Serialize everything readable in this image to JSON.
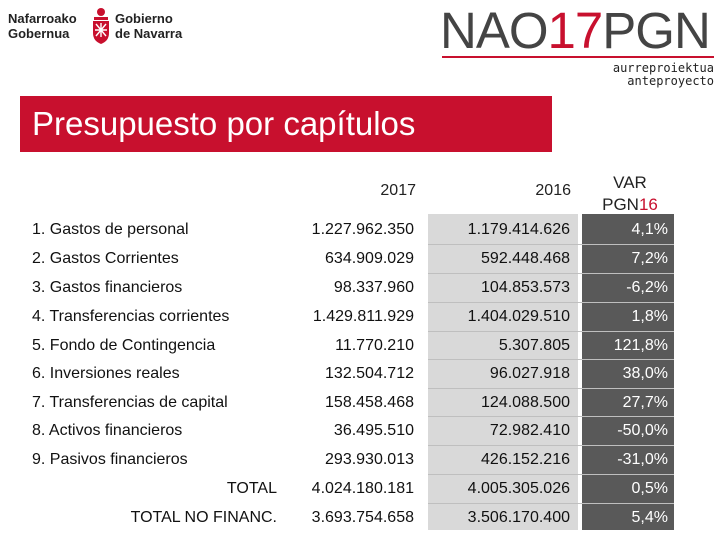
{
  "header": {
    "logo_left_line1": "Nafarroako",
    "logo_left_line2": "Gobernua",
    "logo_right_line1": "Gobierno",
    "logo_right_line2": "de Navarra",
    "brand_prefix": "NAO",
    "brand_number": "17",
    "brand_suffix": "PGN",
    "sub_line1": "aurreproiektua",
    "sub_line2": "anteproyecto",
    "accent_color": "#c8102e"
  },
  "title": "Presupuesto por capítulos",
  "table": {
    "col_2017": "2017",
    "col_2016": "2016",
    "col_var_line1": "VAR",
    "col_var_line2_prefix": "PGN",
    "col_var_line2_suffix": "16",
    "rows": [
      {
        "label": "1. Gastos de personal",
        "v2017": "1.227.962.350",
        "v2016": "1.179.414.626",
        "var": "4,1%"
      },
      {
        "label": "2. Gastos Corrientes",
        "v2017": "634.909.029",
        "v2016": "592.448.468",
        "var": "7,2%"
      },
      {
        "label": "3. Gastos financieros",
        "v2017": "98.337.960",
        "v2016": "104.853.573",
        "var": "-6,2%"
      },
      {
        "label": "4. Transferencias corrientes",
        "v2017": "1.429.811.929",
        "v2016": "1.404.029.510",
        "var": "1,8%"
      },
      {
        "label": "5. Fondo de Contingencia",
        "v2017": "11.770.210",
        "v2016": "5.307.805",
        "var": "121,8%"
      },
      {
        "label": "6. Inversiones reales",
        "v2017": "132.504.712",
        "v2016": "96.027.918",
        "var": "38,0%"
      },
      {
        "label": "7. Transferencias de capital",
        "v2017": "158.458.468",
        "v2016": "124.088.500",
        "var": "27,7%"
      },
      {
        "label": "8. Activos financieros",
        "v2017": "36.495.510",
        "v2016": "72.982.410",
        "var": "-50,0%"
      },
      {
        "label": "9. Pasivos financieros",
        "v2017": "293.930.013",
        "v2016": "426.152.216",
        "var": "-31,0%"
      }
    ],
    "totals": [
      {
        "label": "TOTAL",
        "v2017": "4.024.180.181",
        "v2016": "4.005.305.026",
        "var": "0,5%"
      },
      {
        "label": "TOTAL NO FINANC.",
        "v2017": "3.693.754.658",
        "v2016": "3.506.170.400",
        "var": "5,4%"
      }
    ]
  }
}
